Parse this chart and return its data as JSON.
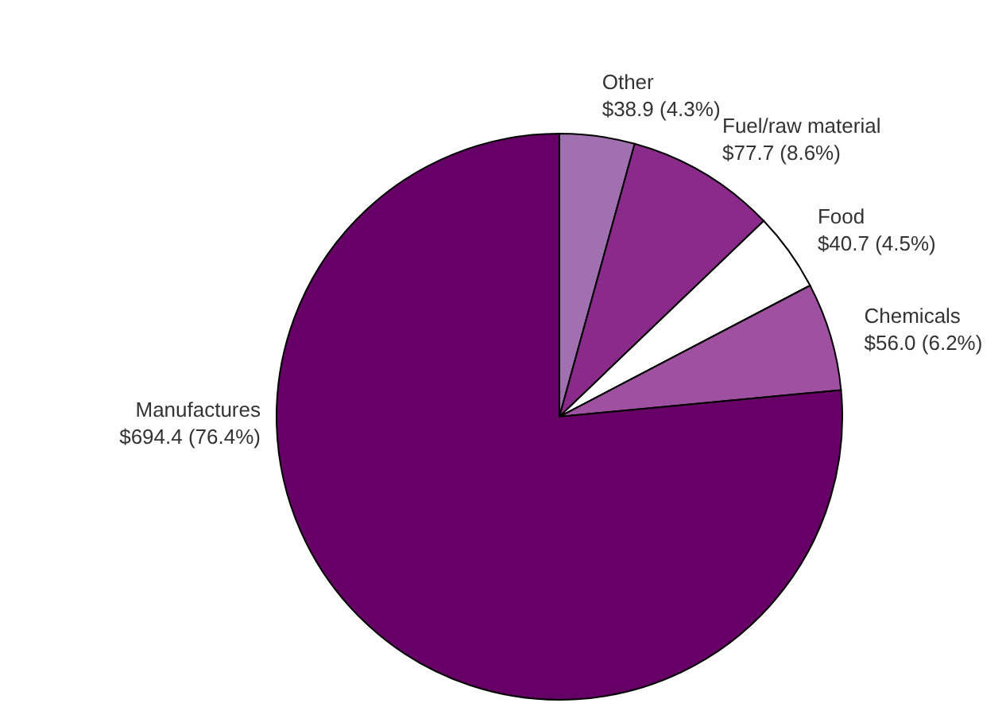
{
  "chart_data": {
    "type": "pie",
    "categories": [
      "Other",
      "Fuel/raw material",
      "Food",
      "Chemicals",
      "Manufactures"
    ],
    "values": [
      38.9,
      77.7,
      40.7,
      56.0,
      694.4
    ],
    "value_labels": [
      "$38.9 (4.3%)",
      "$77.7 (8.6%)",
      "$40.7 (4.5%)",
      "$56.0 (6.2%)",
      "$694.4 (76.4%)"
    ],
    "colors": [
      "#a070b0",
      "#8a2a8a",
      "#ffffff",
      "#a050a0",
      "#660066"
    ]
  }
}
